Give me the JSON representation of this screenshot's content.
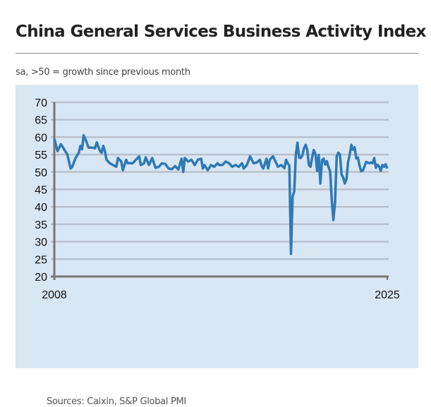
{
  "title": "China General Services Business Activity Index",
  "subtitle": "sa, >50 = growth since previous month",
  "sources": "Sources: Caixin, S&P Global PMI",
  "chart_data": {
    "type": "line",
    "title": "China General Services Business Activity Index",
    "xlabel": "",
    "ylabel": "",
    "ylim": [
      20,
      70
    ],
    "yticks": [
      "70",
      "65",
      "60",
      "55",
      "50",
      "45",
      "40",
      "35",
      "30",
      "25",
      "20"
    ],
    "xlim": [
      "2008-01",
      "2025-01"
    ],
    "xticks": [
      "2008",
      "2025"
    ],
    "grid": true,
    "line_color": "#2e7ab5",
    "points": [
      [
        "2008-01",
        59.5
      ],
      [
        "2008-03",
        56
      ],
      [
        "2008-05",
        58
      ],
      [
        "2008-07",
        56.5
      ],
      [
        "2008-09",
        55
      ],
      [
        "2008-10",
        53
      ],
      [
        "2008-11",
        51
      ],
      [
        "2008-12",
        51.5
      ],
      [
        "2009-02",
        54
      ],
      [
        "2009-04",
        55.5
      ],
      [
        "2009-05",
        57.5
      ],
      [
        "2009-06",
        56.5
      ],
      [
        "2009-07",
        60.5
      ],
      [
        "2009-08",
        59.5
      ],
      [
        "2009-10",
        57
      ],
      [
        "2009-12",
        57
      ],
      [
        "2010-02",
        56.8
      ],
      [
        "2010-03",
        58.5
      ],
      [
        "2010-05",
        56
      ],
      [
        "2010-06",
        55.5
      ],
      [
        "2010-07",
        57.5
      ],
      [
        "2010-08",
        56
      ],
      [
        "2010-09",
        53.5
      ],
      [
        "2010-11",
        52.5
      ],
      [
        "2011-01",
        52
      ],
      [
        "2011-03",
        51.5
      ],
      [
        "2011-04",
        54
      ],
      [
        "2011-06",
        53
      ],
      [
        "2011-07",
        50.5
      ],
      [
        "2011-09",
        53.5
      ],
      [
        "2011-10",
        52.5
      ],
      [
        "2012-01",
        52.5
      ],
      [
        "2012-03",
        53.5
      ],
      [
        "2012-05",
        54.5
      ],
      [
        "2012-06",
        52
      ],
      [
        "2012-08",
        52.5
      ],
      [
        "2012-09",
        54.2
      ],
      [
        "2012-11",
        52
      ],
      [
        "2013-01",
        54
      ],
      [
        "2013-03",
        51.2
      ],
      [
        "2013-05",
        51.5
      ],
      [
        "2013-07",
        52.5
      ],
      [
        "2013-09",
        52.3
      ],
      [
        "2013-11",
        51
      ],
      [
        "2014-01",
        50.8
      ],
      [
        "2014-03",
        51.7
      ],
      [
        "2014-05",
        50.7
      ],
      [
        "2014-07",
        53.8
      ],
      [
        "2014-08",
        50
      ],
      [
        "2014-09",
        54
      ],
      [
        "2014-11",
        53
      ],
      [
        "2015-01",
        53.5
      ],
      [
        "2015-03",
        52
      ],
      [
        "2015-05",
        53.5
      ],
      [
        "2015-07",
        53.8
      ],
      [
        "2015-08",
        51
      ],
      [
        "2015-09",
        52
      ],
      [
        "2015-11",
        50.5
      ],
      [
        "2016-01",
        52
      ],
      [
        "2016-03",
        51.5
      ],
      [
        "2016-05",
        52.5
      ],
      [
        "2016-06",
        52
      ],
      [
        "2016-08",
        52
      ],
      [
        "2016-10",
        53
      ],
      [
        "2016-12",
        52.5
      ],
      [
        "2017-02",
        51.5
      ],
      [
        "2017-04",
        52
      ],
      [
        "2017-06",
        51.5
      ],
      [
        "2017-08",
        52.5
      ],
      [
        "2017-09",
        51
      ],
      [
        "2017-11",
        52
      ],
      [
        "2018-01",
        54.5
      ],
      [
        "2018-03",
        52.5
      ],
      [
        "2018-05",
        52.7
      ],
      [
        "2018-07",
        53.5
      ],
      [
        "2018-08",
        51.8
      ],
      [
        "2018-09",
        51
      ],
      [
        "2018-11",
        53.8
      ],
      [
        "2018-12",
        51
      ],
      [
        "2019-01",
        53.5
      ],
      [
        "2019-03",
        54.5
      ],
      [
        "2019-05",
        52.5
      ],
      [
        "2019-06",
        51.5
      ],
      [
        "2019-08",
        52
      ],
      [
        "2019-10",
        51.1
      ],
      [
        "2019-11",
        53.5
      ],
      [
        "2019-12",
        52.5
      ],
      [
        "2020-01",
        51.8
      ],
      [
        "2020-02",
        26.5
      ],
      [
        "2020-03",
        43
      ],
      [
        "2020-04",
        44.4
      ],
      [
        "2020-05",
        55
      ],
      [
        "2020-06",
        58.4
      ],
      [
        "2020-07",
        54.1
      ],
      [
        "2020-08",
        54
      ],
      [
        "2020-09",
        54.8
      ],
      [
        "2020-10",
        56.8
      ],
      [
        "2020-11",
        57.8
      ],
      [
        "2020-12",
        56.3
      ],
      [
        "2021-01",
        52
      ],
      [
        "2021-02",
        51.5
      ],
      [
        "2021-03",
        54.3
      ],
      [
        "2021-04",
        56.3
      ],
      [
        "2021-05",
        55.1
      ],
      [
        "2021-06",
        50.3
      ],
      [
        "2021-07",
        54.9
      ],
      [
        "2021-08",
        46.7
      ],
      [
        "2021-09",
        53.4
      ],
      [
        "2021-10",
        53.8
      ],
      [
        "2021-11",
        52.1
      ],
      [
        "2021-12",
        53.1
      ],
      [
        "2022-01",
        51.4
      ],
      [
        "2022-02",
        50.2
      ],
      [
        "2022-03",
        42
      ],
      [
        "2022-04",
        36.2
      ],
      [
        "2022-05",
        41.4
      ],
      [
        "2022-06",
        54.5
      ],
      [
        "2022-07",
        55.5
      ],
      [
        "2022-08",
        55
      ],
      [
        "2022-09",
        49.3
      ],
      [
        "2022-10",
        48.4
      ],
      [
        "2022-11",
        46.7
      ],
      [
        "2022-12",
        48
      ],
      [
        "2023-01",
        52.9
      ],
      [
        "2023-02",
        55
      ],
      [
        "2023-03",
        57.8
      ],
      [
        "2023-04",
        56.4
      ],
      [
        "2023-05",
        57.1
      ],
      [
        "2023-06",
        53.9
      ],
      [
        "2023-07",
        54.1
      ],
      [
        "2023-08",
        51.8
      ],
      [
        "2023-09",
        50.2
      ],
      [
        "2023-10",
        50.4
      ],
      [
        "2023-11",
        51.5
      ],
      [
        "2023-12",
        52.9
      ],
      [
        "2024-01",
        52.7
      ],
      [
        "2024-02",
        52.5
      ],
      [
        "2024-03",
        52.7
      ],
      [
        "2024-04",
        52.5
      ],
      [
        "2024-05",
        54
      ],
      [
        "2024-06",
        51.2
      ],
      [
        "2024-07",
        52.1
      ],
      [
        "2024-08",
        51.6
      ],
      [
        "2024-09",
        50.3
      ],
      [
        "2024-10",
        52
      ],
      [
        "2024-11",
        51.5
      ],
      [
        "2024-12",
        52.2
      ],
      [
        "2025-01",
        51
      ]
    ]
  }
}
